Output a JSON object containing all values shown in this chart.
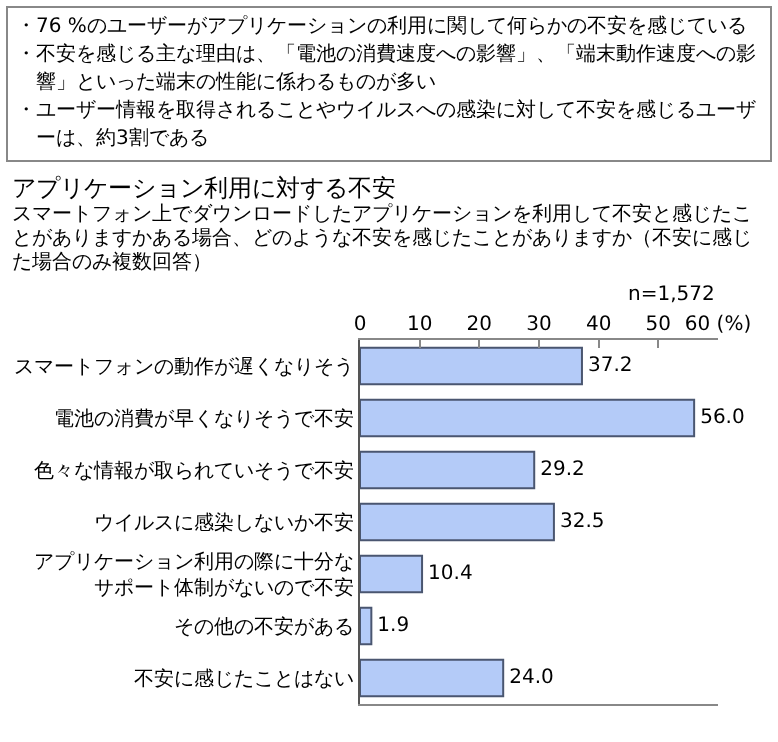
{
  "chart_data": {
    "type": "bar",
    "orientation": "horizontal",
    "title": "アプリケーション利用に対する不安",
    "subtitle": "スマートフォン上でダウンロードしたアプリケーションを利用して不安と感じたことがありますかある場合、どのような不安を感じたことがありますか（不安に感じた場合のみ複数回答）",
    "annotations": [
      "・76 %のユーザーがアプリケーションの利用に関して何らかの不安を感じている",
      "・不安を感じる主な理由は、「電池の消費速度への影響」、「端末動作速度への影響」といった端末の性能に係わるものが多い",
      "・ユーザー情報を取得されることやウイルスへの感染に対して不安を感じるユーザーは、約3割である",
      "n=1,572"
    ],
    "categories": [
      "スマートフォンの動作が遅くなりそう",
      "電池の消費が早くなりそうで不安",
      "色々な情報が取られていそうで不安",
      "ウイルスに感染しないか不安",
      "アプリケーション利用の際に十分なサポート体制がないので不安",
      "その他の不安がある",
      "不安に感じたことはない"
    ],
    "values": [
      37.2,
      56.0,
      29.2,
      32.5,
      10.4,
      1.9,
      24.0
    ],
    "value_labels": [
      "37.2",
      "56.0",
      "29.2",
      "32.5",
      "10.4",
      "1.9",
      "24.0"
    ],
    "color": "#b4cbf8",
    "xlim": [
      0,
      60
    ],
    "xticks": [
      0,
      10,
      20,
      30,
      40,
      50,
      {
        "value": 60,
        "label": "60 (%)"
      }
    ],
    "grid": false
  }
}
